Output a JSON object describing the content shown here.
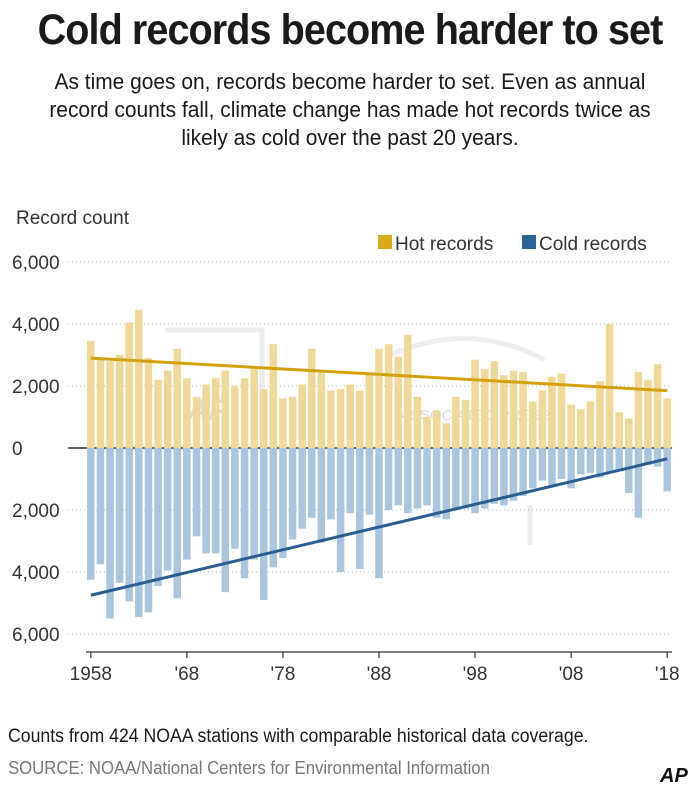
{
  "title": "Cold records become harder to set",
  "subtitle": "As time goes on, records become harder to set. Even as annual record counts fall, climate change has made hot records twice as likely as cold over the past 20 years.",
  "note": "Counts from 424 NOAA stations with comparable historical data coverage.",
  "source": "SOURCE: NOAA/National Centers for Environmental Information",
  "logo": "AP",
  "watermark": {
    "logo": "AP",
    "text": "ASSOCIATED PRESS"
  },
  "colors": {
    "hot_bar": "#efd898",
    "cold_bar": "#a9c6de",
    "hot_trend": "#d4a10b",
    "cold_trend": "#2a5d91",
    "hot_legend": "#d9aa1a",
    "cold_legend": "#2c6396",
    "grid": "#b5b5b5",
    "text": "#333333"
  },
  "chart_data": {
    "type": "bar",
    "ylabel": "Record count",
    "ylim": [
      -6000,
      6000
    ],
    "yticks": [
      6000,
      4000,
      2000,
      0,
      -2000,
      -4000,
      -6000
    ],
    "ytick_labels": [
      "6,000",
      "4,000",
      "2,000",
      "0",
      "2,000",
      "4,000",
      "6,000"
    ],
    "xtick_labels": [
      "1958",
      "'68",
      "'78",
      "'88",
      "'98",
      "'08",
      "'18"
    ],
    "xtick_years": [
      1958,
      1968,
      1978,
      1988,
      1998,
      2008,
      2018
    ],
    "legend_position": "top-right",
    "legend": [
      "Hot records",
      "Cold records"
    ],
    "x": [
      1958,
      1959,
      1960,
      1961,
      1962,
      1963,
      1964,
      1965,
      1966,
      1967,
      1968,
      1969,
      1970,
      1971,
      1972,
      1973,
      1974,
      1975,
      1976,
      1977,
      1978,
      1979,
      1980,
      1981,
      1982,
      1983,
      1984,
      1985,
      1986,
      1987,
      1988,
      1989,
      1990,
      1991,
      1992,
      1993,
      1994,
      1995,
      1996,
      1997,
      1998,
      1999,
      2000,
      2001,
      2002,
      2003,
      2004,
      2005,
      2006,
      2007,
      2008,
      2009,
      2010,
      2011,
      2012,
      2013,
      2014,
      2015,
      2016,
      2017,
      2018
    ],
    "series": [
      {
        "name": "Hot records",
        "values": [
          3450,
          2850,
          2800,
          3000,
          4050,
          4450,
          2900,
          2200,
          2500,
          3200,
          2250,
          1650,
          2050,
          2250,
          2500,
          2000,
          2250,
          2600,
          1900,
          3350,
          1600,
          1650,
          2050,
          3200,
          2500,
          1850,
          1900,
          2050,
          1850,
          2400,
          3200,
          3350,
          2950,
          3650,
          1650,
          1000,
          1200,
          800,
          1650,
          1550,
          2850,
          2550,
          2800,
          2350,
          2500,
          2450,
          1500,
          1850,
          2300,
          2400,
          1400,
          1250,
          1500,
          2150,
          4000,
          1150,
          950,
          2450,
          2200,
          2700,
          1600
        ],
        "trend": [
          2900,
          1850
        ]
      },
      {
        "name": "Cold records",
        "values": [
          -4250,
          -3750,
          -5500,
          -4350,
          -4950,
          -5450,
          -5300,
          -4450,
          -3950,
          -4850,
          -3600,
          -2850,
          -3400,
          -3400,
          -4650,
          -3250,
          -4200,
          -3600,
          -4900,
          -3850,
          -3550,
          -2950,
          -2600,
          -2250,
          -3050,
          -2300,
          -4000,
          -2100,
          -3900,
          -2150,
          -4200,
          -2000,
          -1850,
          -2100,
          -1950,
          -1850,
          -2250,
          -2300,
          -2000,
          -1950,
          -2100,
          -1950,
          -1800,
          -1850,
          -1700,
          -1550,
          -1300,
          -1050,
          -1200,
          -1000,
          -1300,
          -850,
          -800,
          -950,
          -800,
          -750,
          -1450,
          -2250,
          -550,
          -600,
          -1400
        ],
        "trend": [
          -4750,
          -350
        ]
      }
    ]
  }
}
